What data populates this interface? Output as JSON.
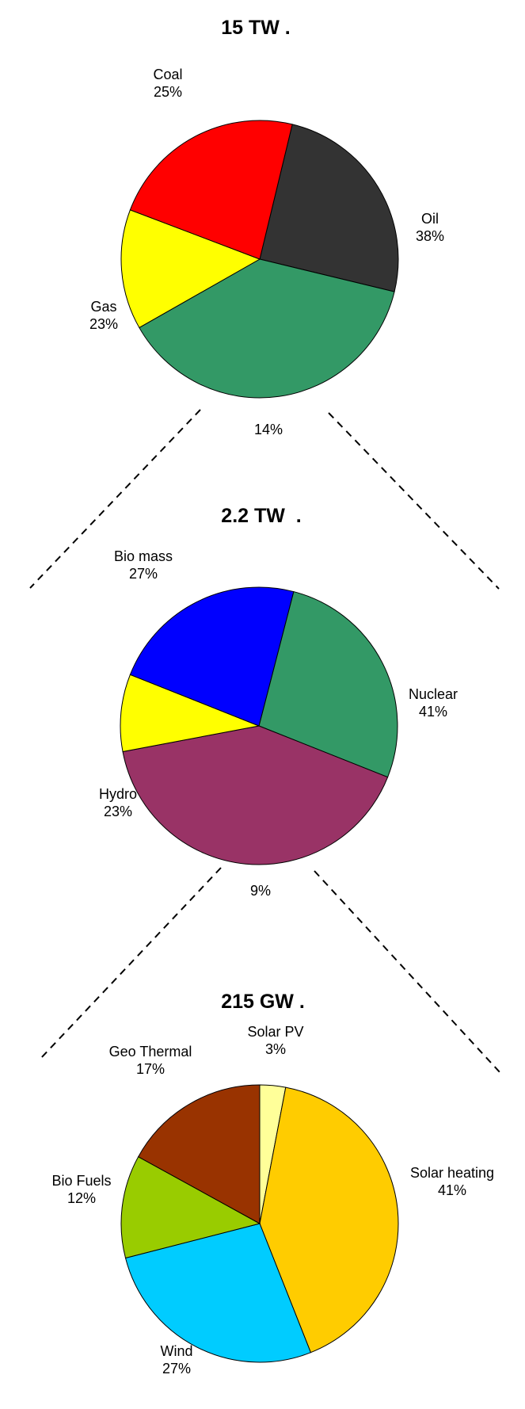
{
  "chart_data": [
    {
      "type": "pie",
      "title": "15 TW .",
      "slices": [
        {
          "label": "Coal",
          "value": 25,
          "value_label": "25%",
          "color": "#333333"
        },
        {
          "label": "Oil",
          "value": 38,
          "value_label": "38%",
          "color": "#339966"
        },
        {
          "label": "",
          "value": 14,
          "value_label": "14%",
          "color": "#FFFF00"
        },
        {
          "label": "Gas",
          "value": 23,
          "value_label": "23%",
          "color": "#FF0000"
        }
      ]
    },
    {
      "type": "pie",
      "title": "2.2 TW  .",
      "slices": [
        {
          "label": "Bio mass",
          "value": 27,
          "value_label": "27%",
          "color": "#339966"
        },
        {
          "label": "Nuclear",
          "value": 41,
          "value_label": "41%",
          "color": "#993366"
        },
        {
          "label": "",
          "value": 9,
          "value_label": "9%",
          "color": "#FFFF00"
        },
        {
          "label": "Hydro",
          "value": 23,
          "value_label": "23%",
          "color": "#0000FF"
        }
      ]
    },
    {
      "type": "pie",
      "title": "215 GW .",
      "slices": [
        {
          "label": "Solar PV",
          "value": 3,
          "value_label": "3%",
          "color": "#FFFF99"
        },
        {
          "label": "Solar heating",
          "value": 41,
          "value_label": "41%",
          "color": "#FFCC00"
        },
        {
          "label": "Wind",
          "value": 27,
          "value_label": "27%",
          "color": "#00CCFF"
        },
        {
          "label": "Bio Fuels",
          "value": 12,
          "value_label": "12%",
          "color": "#99CC00"
        },
        {
          "label": "Geo Thermal",
          "value": 17,
          "value_label": "17%",
          "color": "#993300"
        }
      ]
    }
  ]
}
